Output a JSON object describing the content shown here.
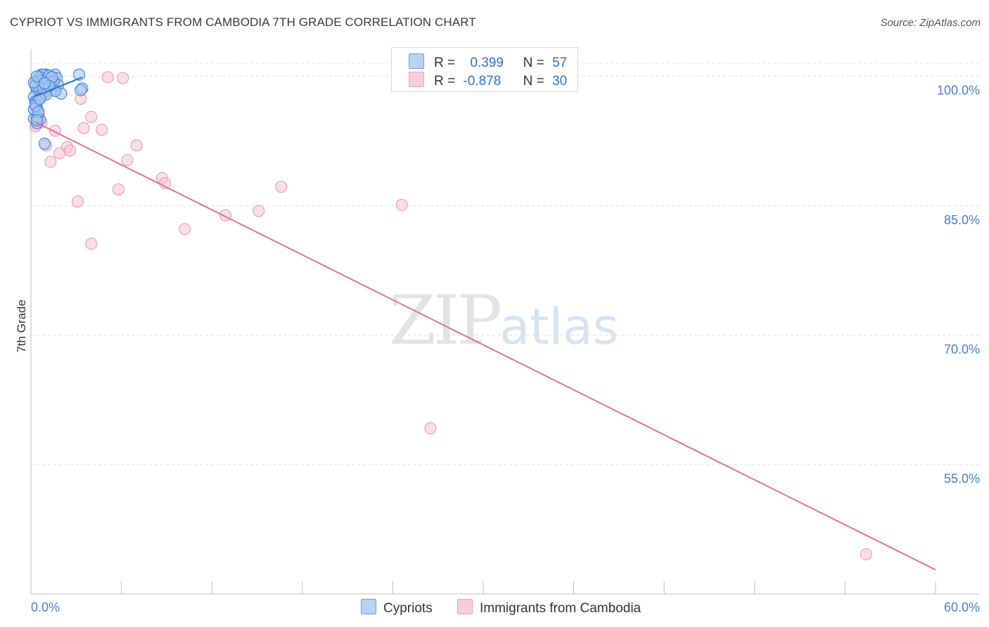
{
  "header": {
    "title": "CYPRIOT VS IMMIGRANTS FROM CAMBODIA 7TH GRADE CORRELATION CHART",
    "source": "Source: ZipAtlas.com"
  },
  "watermark": {
    "zip": "ZIP",
    "atlas": "atlas"
  },
  "legend": {
    "r_label": "R =",
    "n_label": "N =",
    "series": [
      {
        "r": "0.399",
        "n": "57"
      },
      {
        "r": "-0.878",
        "n": "30"
      }
    ]
  },
  "bottom_legend": [
    "Cypriots",
    "Immigrants from Cambodia"
  ],
  "chart_data": {
    "type": "scatter",
    "title": "CYPRIOT VS IMMIGRANTS FROM CAMBODIA 7TH GRADE CORRELATION CHART",
    "xlabel": "",
    "ylabel": "7th Grade",
    "xlim": [
      0,
      60
    ],
    "ylim": [
      40,
      102.5
    ],
    "x_tick_labels": [
      "0.0%",
      "60.0%"
    ],
    "y_ticks": [
      {
        "value": 100,
        "label": "100.0%"
      },
      {
        "value": 85,
        "label": "85.0%"
      },
      {
        "value": 70,
        "label": "70.0%"
      },
      {
        "value": 55,
        "label": "55.0%"
      }
    ],
    "grid": true,
    "colors": {
      "cypriots_fill": "#a9c8f3",
      "cypriots_stroke": "#4a86d8",
      "cypriots_line": "#2d6cd0",
      "cambodia_fill": "#f8c3d3",
      "cambodia_stroke": "#e890ad",
      "cambodia_line": "#e46f9a"
    },
    "series": [
      {
        "name": "Cypriots",
        "r": 0.399,
        "n": 57,
        "points": [
          [
            0.3,
            99.1
          ],
          [
            0.4,
            98.4
          ],
          [
            0.5,
            99.7
          ],
          [
            0.6,
            98.9
          ],
          [
            0.7,
            100.2
          ],
          [
            0.8,
            99.5
          ],
          [
            0.9,
            98.2
          ],
          [
            1.0,
            100.2
          ],
          [
            1.1,
            99.6
          ],
          [
            1.2,
            98.8
          ],
          [
            1.3,
            100.0
          ],
          [
            1.4,
            99.2
          ],
          [
            1.5,
            98.5
          ],
          [
            1.6,
            100.2
          ],
          [
            1.7,
            99.8
          ],
          [
            1.8,
            99.0
          ],
          [
            2.0,
            98.0
          ],
          [
            0.2,
            97.6
          ],
          [
            0.3,
            97.1
          ],
          [
            0.4,
            96.4
          ],
          [
            0.5,
            95.7
          ],
          [
            0.2,
            95.1
          ],
          [
            0.4,
            94.6
          ],
          [
            0.6,
            95.0
          ],
          [
            0.9,
            92.2
          ],
          [
            1.1,
            98.6
          ],
          [
            1.3,
            99.3
          ],
          [
            0.8,
            100.2
          ],
          [
            0.6,
            99.9
          ],
          [
            0.5,
            98.7
          ],
          [
            0.7,
            97.8
          ],
          [
            0.3,
            96.9
          ],
          [
            0.2,
            96.2
          ],
          [
            0.4,
            95.2
          ],
          [
            1.0,
            99.7
          ],
          [
            1.2,
            100.1
          ],
          [
            1.5,
            99.4
          ],
          [
            3.2,
            100.2
          ],
          [
            3.4,
            98.6
          ],
          [
            3.3,
            98.4
          ],
          [
            0.9,
            98.1
          ],
          [
            0.6,
            98.3
          ],
          [
            0.5,
            97.3
          ],
          [
            0.3,
            98.9
          ],
          [
            0.7,
            99.5
          ],
          [
            1.4,
            99.9
          ],
          [
            1.6,
            98.3
          ],
          [
            0.2,
            99.3
          ],
          [
            0.4,
            100.0
          ],
          [
            0.8,
            98.6
          ],
          [
            1.0,
            97.9
          ],
          [
            0.3,
            96.6
          ],
          [
            0.5,
            95.9
          ],
          [
            1.2,
            98.9
          ],
          [
            0.9,
            99.2
          ],
          [
            0.6,
            97.4
          ],
          [
            0.4,
            94.9
          ]
        ],
        "trend": [
          [
            0.3,
            97.7
          ],
          [
            3.4,
            99.9
          ]
        ]
      },
      {
        "name": "Immigrants from Cambodia",
        "r": -0.878,
        "n": 30,
        "points": [
          [
            0.4,
            94.4
          ],
          [
            0.5,
            95.2
          ],
          [
            0.7,
            94.7
          ],
          [
            1.0,
            92.0
          ],
          [
            1.3,
            90.1
          ],
          [
            1.6,
            93.7
          ],
          [
            1.9,
            91.1
          ],
          [
            2.4,
            91.8
          ],
          [
            2.6,
            91.4
          ],
          [
            3.1,
            85.5
          ],
          [
            3.3,
            97.4
          ],
          [
            3.5,
            94.0
          ],
          [
            4.0,
            95.3
          ],
          [
            4.0,
            80.6
          ],
          [
            4.7,
            93.8
          ],
          [
            5.1,
            99.9
          ],
          [
            5.8,
            86.9
          ],
          [
            6.1,
            99.8
          ],
          [
            6.4,
            90.3
          ],
          [
            7.0,
            92.0
          ],
          [
            8.7,
            88.2
          ],
          [
            8.9,
            87.6
          ],
          [
            10.2,
            82.3
          ],
          [
            12.9,
            83.9
          ],
          [
            15.1,
            84.4
          ],
          [
            16.6,
            87.2
          ],
          [
            24.6,
            85.1
          ],
          [
            26.5,
            59.2
          ],
          [
            55.4,
            44.6
          ],
          [
            0.3,
            94.2
          ]
        ],
        "trend": [
          [
            0.3,
            94.7
          ],
          [
            60.0,
            42.8
          ]
        ]
      }
    ]
  }
}
